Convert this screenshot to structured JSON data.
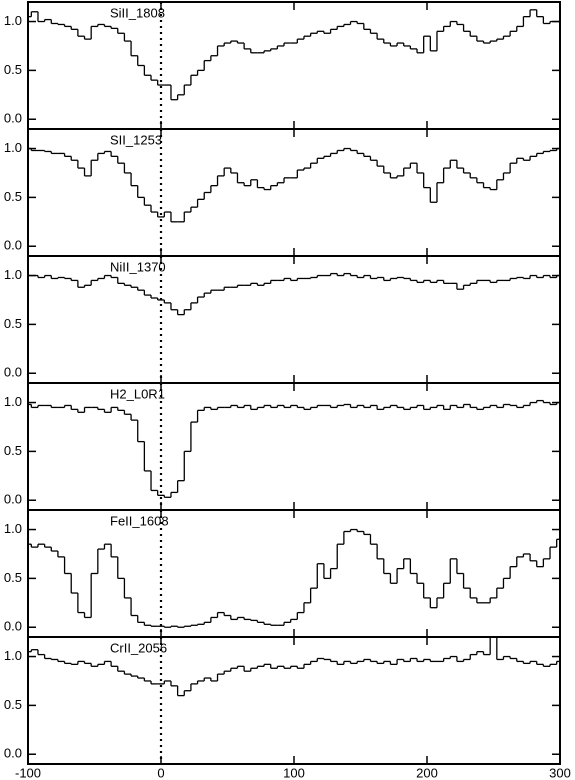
{
  "chart_data": [
    {
      "type": "line",
      "drawstyle": "steps-mid",
      "label": "SiII_1808",
      "color": "#000000",
      "vline_x": 0,
      "xlim": [
        -100,
        300
      ],
      "ylim": [
        -0.1,
        1.2
      ],
      "yticks": [
        {
          "value": 0,
          "label": "0.0"
        },
        {
          "value": 0.5,
          "label": "0.5"
        },
        {
          "value": 1,
          "label": "1.0"
        }
      ],
      "x": [
        -100,
        -95,
        -90,
        -85,
        -80,
        -75,
        -70,
        -65,
        -60,
        -55,
        -50,
        -45,
        -40,
        -35,
        -30,
        -25,
        -20,
        -15,
        -10,
        -5,
        0,
        5,
        10,
        15,
        20,
        25,
        30,
        35,
        40,
        45,
        50,
        55,
        60,
        65,
        70,
        75,
        80,
        85,
        90,
        95,
        100,
        105,
        110,
        115,
        120,
        125,
        130,
        135,
        140,
        145,
        150,
        155,
        160,
        165,
        170,
        175,
        180,
        185,
        190,
        195,
        200,
        205,
        210,
        215,
        220,
        225,
        230,
        235,
        240,
        245,
        250,
        255,
        260,
        265,
        270,
        275,
        280,
        285,
        290,
        295,
        300
      ],
      "values": [
        1.05,
        1.1,
        1.0,
        1.02,
        0.98,
        0.97,
        0.95,
        0.92,
        0.85,
        0.82,
        0.95,
        0.97,
        0.95,
        0.93,
        0.88,
        0.8,
        0.65,
        0.55,
        0.45,
        0.4,
        0.35,
        0.35,
        0.2,
        0.25,
        0.35,
        0.45,
        0.5,
        0.6,
        0.65,
        0.75,
        0.78,
        0.8,
        0.78,
        0.72,
        0.68,
        0.68,
        0.7,
        0.72,
        0.75,
        0.78,
        0.78,
        0.82,
        0.85,
        0.88,
        0.9,
        0.88,
        0.92,
        0.95,
        0.97,
        1.0,
        0.98,
        0.92,
        0.88,
        0.82,
        0.78,
        0.75,
        0.78,
        0.75,
        0.72,
        0.68,
        0.85,
        0.7,
        0.9,
        0.95,
        1.0,
        0.97,
        0.9,
        0.85,
        0.8,
        0.78,
        0.8,
        0.82,
        0.85,
        0.9,
        0.95,
        1.05,
        1.12,
        1.05,
        0.98,
        1.0,
        1.0
      ]
    },
    {
      "type": "line",
      "drawstyle": "steps-mid",
      "label": "SII_1253",
      "color": "#000000",
      "vline_x": 0,
      "xlim": [
        -100,
        300
      ],
      "ylim": [
        -0.1,
        1.2
      ],
      "yticks": [
        {
          "value": 0,
          "label": "0.0"
        },
        {
          "value": 0.5,
          "label": "0.5"
        },
        {
          "value": 1,
          "label": "1.0"
        }
      ],
      "x": [
        -100,
        -95,
        -90,
        -85,
        -80,
        -75,
        -70,
        -65,
        -60,
        -55,
        -50,
        -45,
        -40,
        -35,
        -30,
        -25,
        -20,
        -15,
        -10,
        -5,
        0,
        5,
        10,
        15,
        20,
        25,
        30,
        35,
        40,
        45,
        50,
        55,
        60,
        65,
        70,
        75,
        80,
        85,
        90,
        95,
        100,
        105,
        110,
        115,
        120,
        125,
        130,
        135,
        140,
        145,
        150,
        155,
        160,
        165,
        170,
        175,
        180,
        185,
        190,
        195,
        200,
        205,
        210,
        215,
        220,
        225,
        230,
        235,
        240,
        245,
        250,
        255,
        260,
        265,
        270,
        275,
        280,
        285,
        290,
        295,
        300
      ],
      "values": [
        1.0,
        0.98,
        0.98,
        0.97,
        0.95,
        0.95,
        0.92,
        0.88,
        0.8,
        0.72,
        0.88,
        0.95,
        0.97,
        0.92,
        0.85,
        0.75,
        0.62,
        0.5,
        0.42,
        0.35,
        0.3,
        0.35,
        0.25,
        0.25,
        0.35,
        0.4,
        0.48,
        0.55,
        0.62,
        0.72,
        0.8,
        0.75,
        0.65,
        0.62,
        0.68,
        0.6,
        0.58,
        0.62,
        0.65,
        0.7,
        0.7,
        0.78,
        0.8,
        0.85,
        0.9,
        0.92,
        0.95,
        0.98,
        1.0,
        0.98,
        0.95,
        0.92,
        0.88,
        0.82,
        0.75,
        0.7,
        0.72,
        0.8,
        0.85,
        0.75,
        0.6,
        0.45,
        0.65,
        0.8,
        0.88,
        0.8,
        0.75,
        0.7,
        0.65,
        0.6,
        0.58,
        0.68,
        0.75,
        0.85,
        0.9,
        0.88,
        0.92,
        0.95,
        0.97,
        0.98,
        1.0
      ]
    },
    {
      "type": "line",
      "drawstyle": "steps-mid",
      "label": "NiII_1370",
      "color": "#000000",
      "vline_x": 0,
      "xlim": [
        -100,
        300
      ],
      "ylim": [
        -0.1,
        1.2
      ],
      "yticks": [
        {
          "value": 0,
          "label": "0.0"
        },
        {
          "value": 0.5,
          "label": "0.5"
        },
        {
          "value": 1,
          "label": "1.0"
        }
      ],
      "x": [
        -100,
        -95,
        -90,
        -85,
        -80,
        -75,
        -70,
        -65,
        -60,
        -55,
        -50,
        -45,
        -40,
        -35,
        -30,
        -25,
        -20,
        -15,
        -10,
        -5,
        0,
        5,
        10,
        15,
        20,
        25,
        30,
        35,
        40,
        45,
        50,
        55,
        60,
        65,
        70,
        75,
        80,
        85,
        90,
        95,
        100,
        105,
        110,
        115,
        120,
        125,
        130,
        135,
        140,
        145,
        150,
        155,
        160,
        165,
        170,
        175,
        180,
        185,
        190,
        195,
        200,
        205,
        210,
        215,
        220,
        225,
        230,
        235,
        240,
        245,
        250,
        255,
        260,
        265,
        270,
        275,
        280,
        285,
        290,
        295,
        300
      ],
      "values": [
        1.0,
        1.0,
        0.98,
        1.0,
        0.97,
        0.98,
        0.97,
        0.95,
        0.88,
        0.9,
        0.95,
        0.97,
        1.0,
        0.98,
        0.92,
        0.9,
        0.88,
        0.85,
        0.8,
        0.77,
        0.75,
        0.72,
        0.65,
        0.6,
        0.65,
        0.72,
        0.78,
        0.82,
        0.85,
        0.85,
        0.88,
        0.88,
        0.9,
        0.9,
        0.92,
        0.9,
        0.92,
        0.95,
        0.95,
        0.97,
        0.95,
        0.97,
        0.97,
        0.98,
        1.0,
        1.0,
        1.02,
        1.0,
        1.02,
        1.0,
        0.98,
        1.0,
        0.97,
        0.98,
        0.95,
        0.97,
        0.98,
        0.97,
        0.95,
        0.93,
        0.95,
        0.93,
        0.95,
        0.92,
        0.92,
        0.86,
        0.9,
        0.92,
        0.95,
        0.95,
        0.93,
        0.95,
        0.95,
        0.97,
        0.98,
        0.97,
        1.0,
        0.98,
        1.0,
        0.98,
        1.0
      ]
    },
    {
      "type": "line",
      "drawstyle": "steps-mid",
      "label": "H2_L0R1",
      "color": "#000000",
      "vline_x": 0,
      "xlim": [
        -100,
        300
      ],
      "ylim": [
        -0.1,
        1.2
      ],
      "yticks": [
        {
          "value": 0,
          "label": "0.0"
        },
        {
          "value": 0.5,
          "label": "0.5"
        },
        {
          "value": 1,
          "label": "1.0"
        }
      ],
      "x": [
        -100,
        -95,
        -90,
        -85,
        -80,
        -75,
        -70,
        -65,
        -60,
        -55,
        -50,
        -45,
        -40,
        -35,
        -30,
        -25,
        -20,
        -15,
        -10,
        -5,
        0,
        5,
        10,
        15,
        20,
        25,
        30,
        35,
        40,
        45,
        50,
        55,
        60,
        65,
        70,
        75,
        80,
        85,
        90,
        95,
        100,
        105,
        110,
        115,
        120,
        125,
        130,
        135,
        140,
        145,
        150,
        155,
        160,
        165,
        170,
        175,
        180,
        185,
        190,
        195,
        200,
        205,
        210,
        215,
        220,
        225,
        230,
        235,
        240,
        245,
        250,
        255,
        260,
        265,
        270,
        275,
        280,
        285,
        290,
        295,
        300
      ],
      "values": [
        0.98,
        0.95,
        0.97,
        0.97,
        0.95,
        0.95,
        0.97,
        0.93,
        0.9,
        0.95,
        0.95,
        0.93,
        0.9,
        0.95,
        0.92,
        0.88,
        0.82,
        0.6,
        0.3,
        0.1,
        0.05,
        0.03,
        0.08,
        0.2,
        0.5,
        0.8,
        0.92,
        0.95,
        0.93,
        0.95,
        0.95,
        0.97,
        0.95,
        0.97,
        0.93,
        0.95,
        0.97,
        0.95,
        0.97,
        0.95,
        0.97,
        0.95,
        0.93,
        0.95,
        0.97,
        0.97,
        0.95,
        0.97,
        0.98,
        0.95,
        0.97,
        0.95,
        0.97,
        0.93,
        0.95,
        0.97,
        0.95,
        0.93,
        0.95,
        0.97,
        0.93,
        0.95,
        0.97,
        0.93,
        0.97,
        0.95,
        0.98,
        0.95,
        0.93,
        0.95,
        0.97,
        0.95,
        0.98,
        0.97,
        0.95,
        0.97,
        1.0,
        1.02,
        1.0,
        0.98,
        1.0
      ]
    },
    {
      "type": "line",
      "drawstyle": "steps-mid",
      "label": "FeII_1608",
      "color": "#000000",
      "vline_x": 0,
      "xlim": [
        -100,
        300
      ],
      "ylim": [
        -0.1,
        1.2
      ],
      "yticks": [
        {
          "value": 0,
          "label": "0.0"
        },
        {
          "value": 0.5,
          "label": "0.5"
        },
        {
          "value": 1,
          "label": "1.0"
        }
      ],
      "x": [
        -100,
        -95,
        -90,
        -85,
        -80,
        -75,
        -70,
        -65,
        -60,
        -55,
        -50,
        -45,
        -40,
        -35,
        -30,
        -25,
        -20,
        -15,
        -10,
        -5,
        0,
        5,
        10,
        15,
        20,
        25,
        30,
        35,
        40,
        45,
        50,
        55,
        60,
        65,
        70,
        75,
        80,
        85,
        90,
        95,
        100,
        105,
        110,
        115,
        120,
        125,
        130,
        135,
        140,
        145,
        150,
        155,
        160,
        165,
        170,
        175,
        180,
        185,
        190,
        195,
        200,
        205,
        210,
        215,
        220,
        225,
        230,
        235,
        240,
        245,
        250,
        255,
        260,
        265,
        270,
        275,
        280,
        285,
        290,
        295,
        300
      ],
      "values": [
        0.85,
        0.82,
        0.85,
        0.82,
        0.78,
        0.72,
        0.55,
        0.35,
        0.15,
        0.1,
        0.55,
        0.8,
        0.85,
        0.72,
        0.5,
        0.3,
        0.12,
        0.05,
        0.02,
        0.01,
        0.01,
        0.0,
        0.01,
        0.0,
        0.01,
        0.02,
        0.03,
        0.05,
        0.1,
        0.15,
        0.12,
        0.08,
        0.1,
        0.08,
        0.07,
        0.05,
        0.03,
        0.02,
        0.02,
        0.05,
        0.08,
        0.15,
        0.25,
        0.4,
        0.65,
        0.5,
        0.6,
        0.85,
        0.98,
        1.0,
        0.98,
        0.95,
        0.85,
        0.7,
        0.55,
        0.45,
        0.6,
        0.7,
        0.55,
        0.45,
        0.3,
        0.2,
        0.3,
        0.45,
        0.7,
        0.55,
        0.4,
        0.3,
        0.25,
        0.25,
        0.3,
        0.4,
        0.5,
        0.62,
        0.72,
        0.75,
        0.68,
        0.62,
        0.7,
        0.82,
        0.9
      ]
    },
    {
      "type": "line",
      "drawstyle": "steps-mid",
      "label": "CrII_2056",
      "color": "#000000",
      "vline_x": 0,
      "xlim": [
        -100,
        300
      ],
      "ylim": [
        -0.1,
        1.2
      ],
      "yticks": [
        {
          "value": 0,
          "label": "0.0"
        },
        {
          "value": 0.5,
          "label": "0.5"
        },
        {
          "value": 1,
          "label": "1.0"
        }
      ],
      "xticks": [
        -100,
        0,
        100,
        200,
        300
      ],
      "x": [
        -100,
        -95,
        -90,
        -85,
        -80,
        -75,
        -70,
        -65,
        -60,
        -55,
        -50,
        -45,
        -40,
        -35,
        -30,
        -25,
        -20,
        -15,
        -10,
        -5,
        0,
        5,
        10,
        15,
        20,
        25,
        30,
        35,
        40,
        45,
        50,
        55,
        60,
        65,
        70,
        75,
        80,
        85,
        90,
        95,
        100,
        105,
        110,
        115,
        120,
        125,
        130,
        135,
        140,
        145,
        150,
        155,
        160,
        165,
        170,
        175,
        180,
        185,
        190,
        195,
        200,
        205,
        210,
        215,
        220,
        225,
        230,
        235,
        240,
        245,
        250,
        255,
        260,
        265,
        270,
        275,
        280,
        285,
        290,
        295,
        300
      ],
      "values": [
        1.05,
        1.07,
        1.02,
        0.98,
        0.97,
        0.95,
        0.93,
        0.92,
        0.95,
        0.93,
        0.9,
        0.92,
        0.95,
        0.9,
        0.85,
        0.82,
        0.8,
        0.78,
        0.75,
        0.72,
        0.72,
        0.75,
        0.7,
        0.6,
        0.65,
        0.72,
        0.75,
        0.78,
        0.75,
        0.82,
        0.85,
        0.88,
        0.9,
        0.85,
        0.88,
        0.9,
        0.92,
        0.88,
        0.9,
        0.88,
        0.9,
        0.88,
        0.92,
        0.95,
        0.98,
        0.97,
        0.95,
        0.92,
        0.95,
        0.93,
        0.95,
        0.97,
        0.95,
        0.93,
        0.95,
        0.92,
        0.97,
        0.95,
        0.98,
        0.95,
        0.97,
        0.95,
        0.95,
        0.98,
        1.0,
        0.95,
        0.97,
        1.02,
        1.05,
        1.02,
        1.2,
        0.97,
        1.0,
        0.98,
        0.95,
        0.93,
        0.95,
        0.92,
        0.9,
        0.92,
        0.95
      ]
    }
  ]
}
